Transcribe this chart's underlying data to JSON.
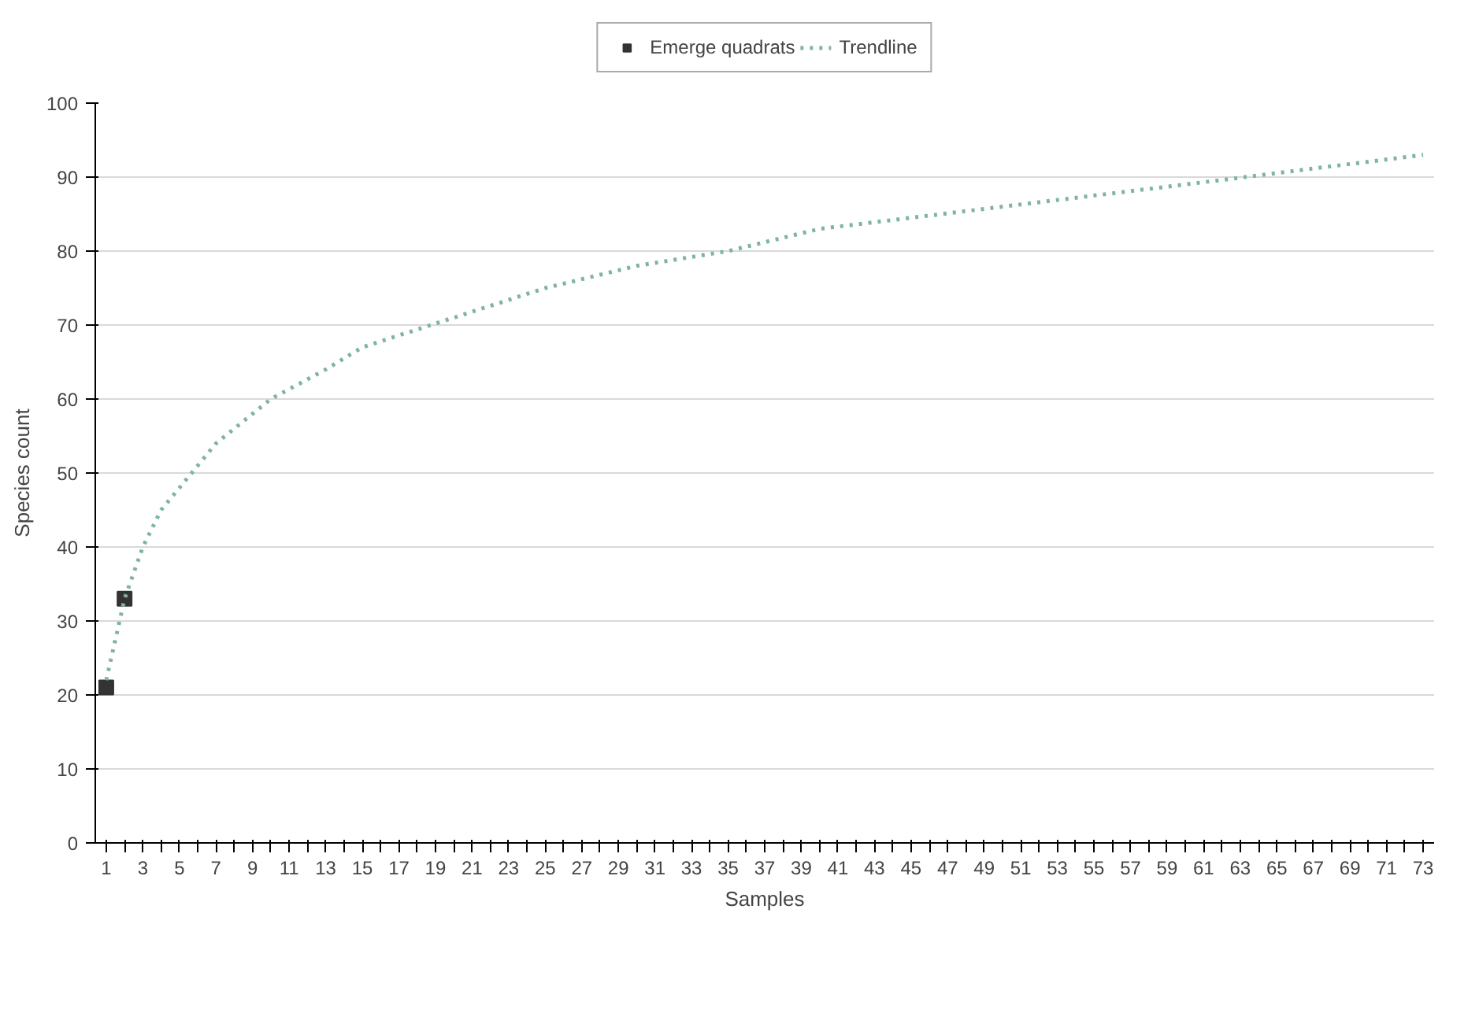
{
  "chart_data": {
    "type": "scatter",
    "xlabel": "Samples",
    "ylabel": "Species count",
    "xlim": [
      0.4,
      73.6
    ],
    "ylim": [
      0,
      100
    ],
    "xticks": [
      1,
      {
        "value": 2,
        "label": null
      },
      3,
      {
        "value": 4,
        "label": null
      },
      5,
      {
        "value": 6,
        "label": null
      },
      7,
      {
        "value": 8,
        "label": null
      },
      9,
      {
        "value": 10,
        "label": null
      },
      11,
      {
        "value": 12,
        "label": null
      },
      13,
      {
        "value": 14,
        "label": null
      },
      15,
      {
        "value": 16,
        "label": null
      },
      17,
      {
        "value": 18,
        "label": null
      },
      19,
      {
        "value": 20,
        "label": null
      },
      21,
      {
        "value": 22,
        "label": null
      },
      23,
      {
        "value": 24,
        "label": null
      },
      25,
      {
        "value": 26,
        "label": null
      },
      27,
      {
        "value": 28,
        "label": null
      },
      29,
      {
        "value": 30,
        "label": null
      },
      31,
      {
        "value": 32,
        "label": null
      },
      33,
      {
        "value": 34,
        "label": null
      },
      35,
      {
        "value": 36,
        "label": null
      },
      37,
      {
        "value": 38,
        "label": null
      },
      39,
      {
        "value": 40,
        "label": null
      },
      41,
      {
        "value": 42,
        "label": null
      },
      43,
      {
        "value": 44,
        "label": null
      },
      45,
      {
        "value": 46,
        "label": null
      },
      47,
      {
        "value": 48,
        "label": null
      },
      49,
      {
        "value": 50,
        "label": null
      },
      51,
      {
        "value": 52,
        "label": null
      },
      53,
      {
        "value": 54,
        "label": null
      },
      55,
      {
        "value": 56,
        "label": null
      },
      57,
      {
        "value": 58,
        "label": null
      },
      59,
      {
        "value": 60,
        "label": null
      },
      61,
      {
        "value": 62,
        "label": null
      },
      63,
      {
        "value": 64,
        "label": null
      },
      65,
      {
        "value": 66,
        "label": null
      },
      67,
      {
        "value": 68,
        "label": null
      },
      69,
      {
        "value": 70,
        "label": null
      },
      71,
      {
        "value": 72,
        "label": null
      },
      73
    ],
    "yticks": [
      0,
      10,
      20,
      30,
      40,
      50,
      60,
      70,
      80,
      90,
      100
    ],
    "grid": "y",
    "legend": "top",
    "series": [
      {
        "name": "Emerge quadrats",
        "marker": "square",
        "color": "#333333",
        "x": [
          1,
          2
        ],
        "values": [
          21,
          33
        ]
      },
      {
        "name": "Trendline",
        "type": "line",
        "line_style": "dotted",
        "color": "#7fb3a5",
        "x": [
          1,
          2,
          3,
          4,
          5,
          7,
          9,
          10,
          13,
          15,
          20,
          25,
          30,
          35,
          40,
          50,
          60,
          73
        ],
        "values": [
          22,
          33,
          40,
          45,
          48,
          54,
          58,
          60,
          64,
          67,
          71,
          75,
          78,
          80,
          83,
          86,
          89,
          93
        ]
      }
    ]
  }
}
